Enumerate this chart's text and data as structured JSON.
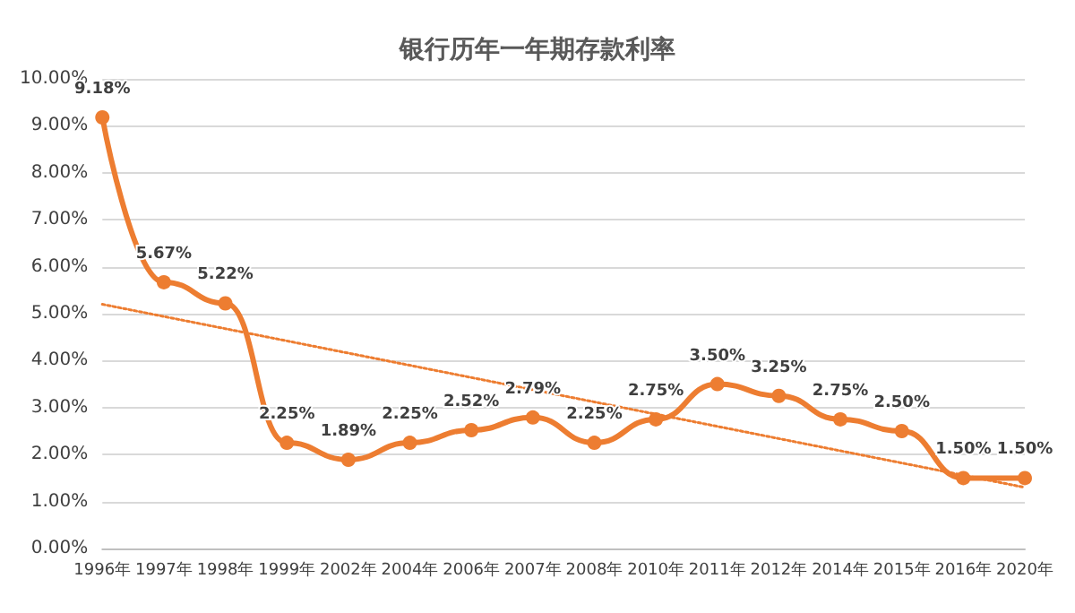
{
  "chart_data": {
    "type": "line",
    "title": "银行历年一年期存款利率",
    "categories": [
      "1996年",
      "1997年",
      "1998年",
      "1999年",
      "2002年",
      "2004年",
      "2006年",
      "2007年",
      "2008年",
      "2010年",
      "2011年",
      "2012年",
      "2014年",
      "2015年",
      "2016年",
      "2020年"
    ],
    "series": [
      {
        "color": "#ed7d31",
        "values": [
          9.18,
          5.67,
          5.22,
          2.25,
          1.89,
          2.25,
          2.52,
          2.79,
          2.25,
          2.75,
          3.5,
          3.25,
          2.75,
          2.5,
          1.5,
          1.5
        ],
        "value_labels": [
          "9.18%",
          "5.67%",
          "5.22%",
          "2.25%",
          "1.89%",
          "2.25%",
          "2.52%",
          "2.79%",
          "2.25%",
          "2.75%",
          "3.50%",
          "3.25%",
          "2.75%",
          "2.50%",
          "1.50%",
          "1.50%"
        ],
        "marker": "circle",
        "line_style": "solid"
      },
      {
        "type": "line",
        "color": "#ed7d31",
        "x": [
          "1996年",
          "2020年"
        ],
        "values": [
          5.2,
          1.3
        ],
        "marker": "none",
        "line_style": "dotted"
      }
    ],
    "ylim": [
      0,
      10
    ],
    "yticks": [
      {
        "value": 0,
        "label": "0.00%"
      },
      {
        "value": 1,
        "label": "1.00%"
      },
      {
        "value": 2,
        "label": "2.00%"
      },
      {
        "value": 3,
        "label": "3.00%"
      },
      {
        "value": 4,
        "label": "4.00%"
      },
      {
        "value": 5,
        "label": "5.00%"
      },
      {
        "value": 6,
        "label": "6.00%"
      },
      {
        "value": 7,
        "label": "7.00%"
      },
      {
        "value": 8,
        "label": "8.00%"
      },
      {
        "value": 9,
        "label": "9.00%"
      },
      {
        "value": 10,
        "label": "10.00%"
      }
    ],
    "grid": "y"
  }
}
